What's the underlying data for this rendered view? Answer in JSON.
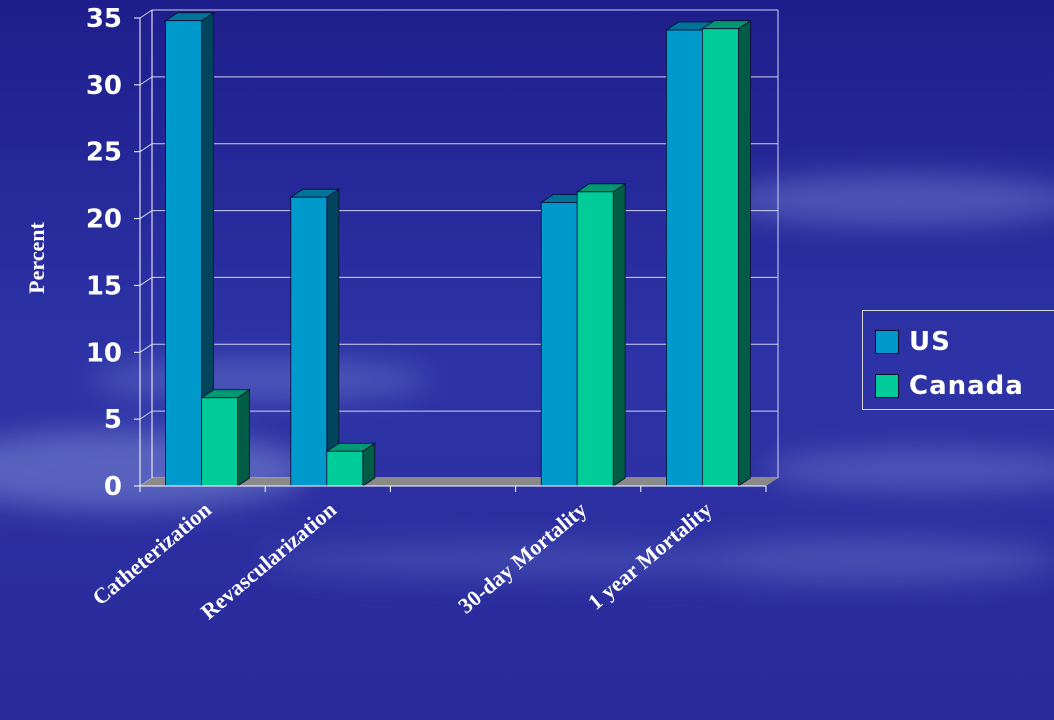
{
  "chart_data": {
    "type": "bar",
    "title": "",
    "xlabel": "",
    "ylabel": "Percent",
    "ylim": [
      0,
      35
    ],
    "yticks": [
      "0",
      "5",
      "10",
      "15",
      "20",
      "25",
      "30",
      "35"
    ],
    "categories": [
      "Catheterization",
      "Revascularization",
      "",
      "30-day Mortality",
      "1 year Mortality"
    ],
    "series": [
      {
        "name": "US",
        "values": [
          34.8,
          21.6,
          null,
          21.2,
          34.1
        ],
        "color": "#0099cc"
      },
      {
        "name": "Canada",
        "values": [
          6.6,
          2.6,
          null,
          22.0,
          34.2
        ],
        "color": "#00cc99"
      }
    ],
    "grid": true,
    "legend_position": "right"
  },
  "legend": {
    "us_label": "US",
    "canada_label": "Canada"
  }
}
